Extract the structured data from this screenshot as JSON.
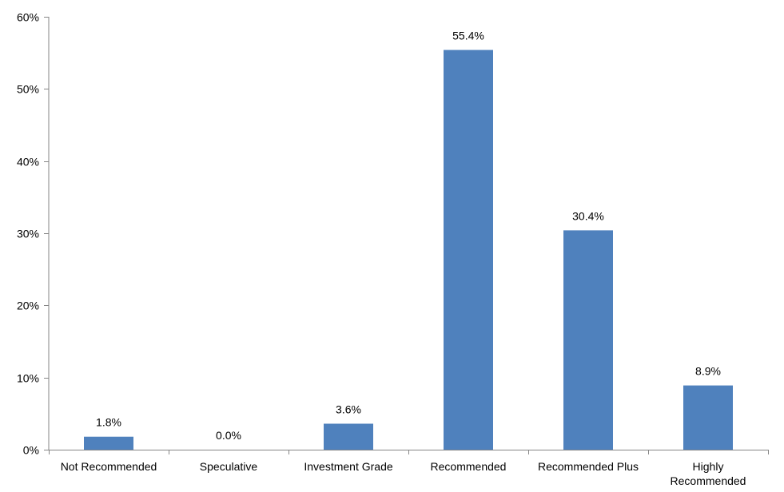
{
  "chart_data": {
    "type": "bar",
    "title": "",
    "xlabel": "",
    "ylabel": "",
    "categories": [
      "Not Recommended",
      "Speculative",
      "Investment Grade",
      "Recommended",
      "Recommended Plus",
      "Highly Recommended"
    ],
    "category_display_lines": [
      [
        "Not Recommended"
      ],
      [
        "Speculative"
      ],
      [
        "Investment Grade"
      ],
      [
        "Recommended"
      ],
      [
        "Recommended Plus"
      ],
      [
        "Highly",
        "Recommended"
      ]
    ],
    "values": [
      1.8,
      0.0,
      3.6,
      55.4,
      30.4,
      8.9
    ],
    "data_labels": [
      "1.8%",
      "0.0%",
      "3.6%",
      "55.4%",
      "30.4%",
      "8.9%"
    ],
    "ylim": [
      0,
      60
    ],
    "yticks": [
      0,
      10,
      20,
      30,
      40,
      50,
      60
    ],
    "ytick_labels": [
      "0%",
      "10%",
      "20%",
      "30%",
      "40%",
      "50%",
      "60%"
    ],
    "grid": false,
    "legend": "none",
    "colors": {
      "bar": "#4F81BD",
      "axis": "#868686",
      "text": "#000000"
    }
  }
}
